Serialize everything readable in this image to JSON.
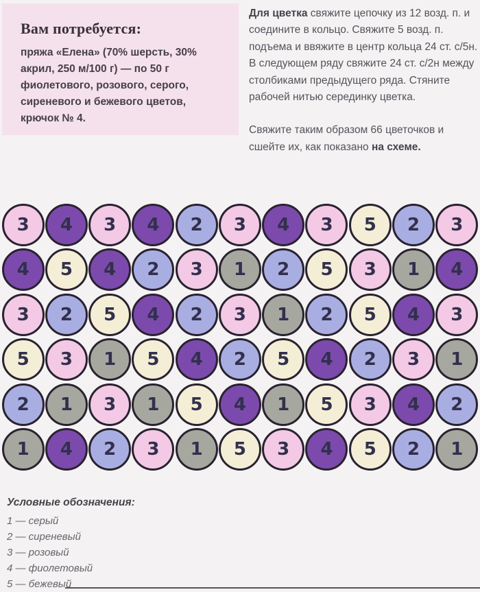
{
  "needs_box": {
    "title": "Вам потребуется:",
    "body": "пряжа «Елена» (70% шерсть, 30% акрил, 250 м/100 г) — по 50 г фиолетового, розового, серого, сиреневого и бежевого цветов, крючок № 4."
  },
  "instructions": {
    "para1_lead": "Для цветка",
    "para1_rest": " свяжите цепочку из 12 возд. п. и соедините в кольцо. Свяжите 5 возд. п. подъема и ввяжите в центр кольца 24 ст. с/5н. В следующем ряду свяжите 24 ст. с/2н между столбиками предыдущего ряда. Стяните рабочей нитью серединку цветка.",
    "para2_start": "Свяжите таким образом 66 цветочков и сшейте их, как показано ",
    "para2_bold": "на схеме."
  },
  "scheme": {
    "rows": [
      [
        3,
        4,
        3,
        4,
        2,
        3,
        4,
        3,
        5,
        2,
        3
      ],
      [
        4,
        5,
        4,
        2,
        3,
        1,
        2,
        5,
        3,
        1,
        4
      ],
      [
        3,
        2,
        5,
        4,
        2,
        3,
        1,
        2,
        5,
        4,
        3
      ],
      [
        5,
        3,
        1,
        5,
        4,
        2,
        5,
        4,
        2,
        3,
        1
      ],
      [
        2,
        1,
        3,
        1,
        5,
        4,
        1,
        5,
        3,
        4,
        2
      ],
      [
        1,
        4,
        2,
        3,
        1,
        5,
        3,
        4,
        5,
        2,
        1
      ]
    ],
    "color_map": {
      "1": "#a6a8a0",
      "2": "#a9aee2",
      "3": "#f3c9e5",
      "4": "#7c4aad",
      "5": "#f4eed6"
    },
    "color_names": {
      "1": "серый",
      "2": "сиреневый",
      "3": "розовый",
      "4": "фиолетовый",
      "5": "бежевый"
    }
  },
  "legend": {
    "title": "Условные обозначения:",
    "items": [
      "1 — серый",
      "2 — сиреневый",
      "3 — розовый",
      "4 — фиолетовый",
      "5 — бежевый"
    ]
  },
  "colors": {
    "page_background": "#f4f2f3",
    "materials_box_background": "#f5e1ec",
    "circle_outline": "#29222f",
    "circle_number": "#32304d"
  }
}
